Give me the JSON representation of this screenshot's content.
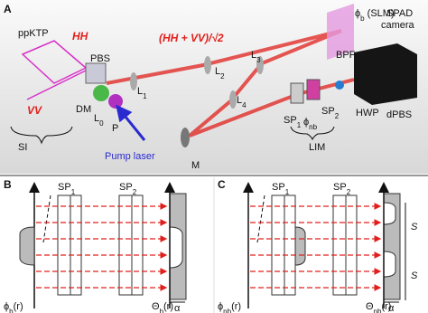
{
  "panel_a": {
    "labels": [
      {
        "text": "A"
      },
      {
        "text": "ppKTP"
      },
      {
        "text": "HH"
      },
      {
        "text": "(HH + VV)/√2"
      },
      {
        "text": "ϕ",
        "sub": "b",
        "rest": " (SLM)"
      },
      {
        "text": "SPAD"
      },
      {
        "text": "camera"
      },
      {
        "text": "PBS"
      },
      {
        "text": "L",
        "sub": "1"
      },
      {
        "text": "L",
        "sub": "2"
      },
      {
        "text": "L",
        "sub": "3"
      },
      {
        "text": "BPF"
      },
      {
        "text": "DM"
      },
      {
        "text": "L",
        "sub": "0"
      },
      {
        "text": "P"
      },
      {
        "text": "VV"
      },
      {
        "text": "SI"
      },
      {
        "text": "Pump laser"
      },
      {
        "text": "M"
      },
      {
        "text": "L",
        "sub": "4"
      },
      {
        "text": "SP",
        "sub": "1"
      },
      {
        "text": "ϕ",
        "sub": "nb"
      },
      {
        "text": "SP",
        "sub": "2"
      },
      {
        "text": "HWP"
      },
      {
        "text": "dPBS"
      },
      {
        "text": "LIM"
      }
    ]
  },
  "panel_b": {
    "labels": [
      {
        "text": "B"
      },
      {
        "text": "SP",
        "sub": "1"
      },
      {
        "text": "SP",
        "sub": "2"
      },
      {
        "text": "ϕ",
        "sub": "b",
        "rest": "(r)"
      },
      {
        "text": "Θ",
        "sub": "b",
        "rest": "(r)"
      },
      {
        "text": "α"
      }
    ]
  },
  "panel_c": {
    "labels": [
      {
        "text": "C"
      },
      {
        "text": "SP",
        "sub": "1"
      },
      {
        "text": "SP",
        "sub": "2"
      },
      {
        "text": "ϕ",
        "sub": "nb",
        "rest": "(r)"
      },
      {
        "text": "Θ",
        "sub": "nb",
        "rest": "(r)"
      },
      {
        "text": "α"
      },
      {
        "text": "S"
      },
      {
        "text": "S"
      }
    ]
  }
}
